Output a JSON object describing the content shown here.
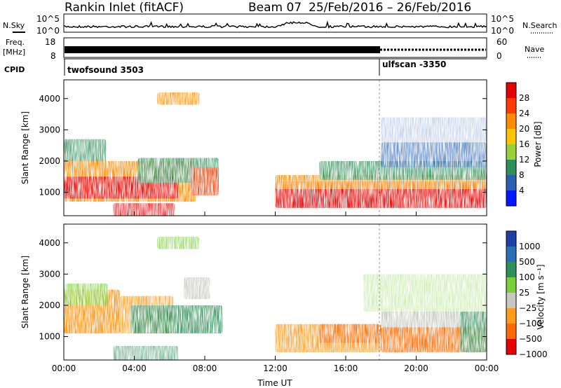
{
  "header": {
    "station": "Rankin Inlet (fitACF)",
    "beam": "Beam 07",
    "dates": "25/Feb/2016 – 26/Feb/2016"
  },
  "panel_labels": {
    "nsky": "N.Sky",
    "nsearch": "N.Search",
    "freq": "Freq.",
    "freq_unit": "[MHz]",
    "nave": "Nave",
    "cpid": "CPID",
    "cpid1": "twofsound 3503",
    "cpid2": "ulfscan -3350"
  },
  "chart_data": [
    {
      "type": "line",
      "title": "N.Sky / N.Search",
      "left_ticks": [
        "10^5",
        "10^0"
      ],
      "right_ticks": [
        "10^5",
        "10^0"
      ],
      "scale": "log"
    },
    {
      "type": "line",
      "title": "Freq. / Nave",
      "left_ticks": [
        "18",
        "8"
      ],
      "right_ticks": [
        "60",
        "0"
      ]
    },
    {
      "type": "heatmap",
      "xlabel": "",
      "ylabel": "Slant Range [km]",
      "y_ticks": [
        "4000",
        "3000",
        "2000",
        "1000"
      ],
      "y_tick_values": [
        4000,
        3000,
        2000,
        1000
      ],
      "ylim": [
        250,
        4600
      ],
      "x_ticks": [
        "00:00",
        "04:00",
        "08:00",
        "12:00",
        "16:00",
        "20:00",
        "00:00"
      ],
      "x_tick_hours": [
        0,
        4,
        8,
        12,
        16,
        20,
        24
      ],
      "xlim": [
        0,
        24
      ],
      "colorbar": {
        "label": "Power [dB]",
        "labels": [
          "28",
          "24",
          "20",
          "16",
          "12",
          "8",
          "4"
        ],
        "colors": [
          "#e60000",
          "#ff3b00",
          "#ff8c00",
          "#ffc400",
          "#9ad13a",
          "#2f8f5a",
          "#2a5fb0",
          "#0018ff"
        ]
      }
    },
    {
      "type": "heatmap",
      "xlabel": "Time UT",
      "ylabel": "Slant Range [km]",
      "y_ticks": [
        "4000",
        "3000",
        "2000",
        "1000"
      ],
      "y_tick_values": [
        4000,
        3000,
        2000,
        1000
      ],
      "ylim": [
        250,
        4600
      ],
      "x_ticks": [
        "00:00",
        "04:00",
        "08:00",
        "12:00",
        "16:00",
        "20:00",
        "00:00"
      ],
      "x_tick_hours": [
        0,
        4,
        8,
        12,
        16,
        20,
        24
      ],
      "xlim": [
        0,
        24
      ],
      "colorbar": {
        "label": "Velocity [m s⁻¹]",
        "labels": [
          "1000",
          "500",
          "100",
          "25",
          "−25",
          "−100",
          "−500",
          "−1000"
        ],
        "colors": [
          "#1f3fa6",
          "#2b6fb8",
          "#2f8f5a",
          "#7ccf3a",
          "#c8c8c0",
          "#ff9c1a",
          "#ff6a00",
          "#e60000"
        ]
      }
    }
  ]
}
